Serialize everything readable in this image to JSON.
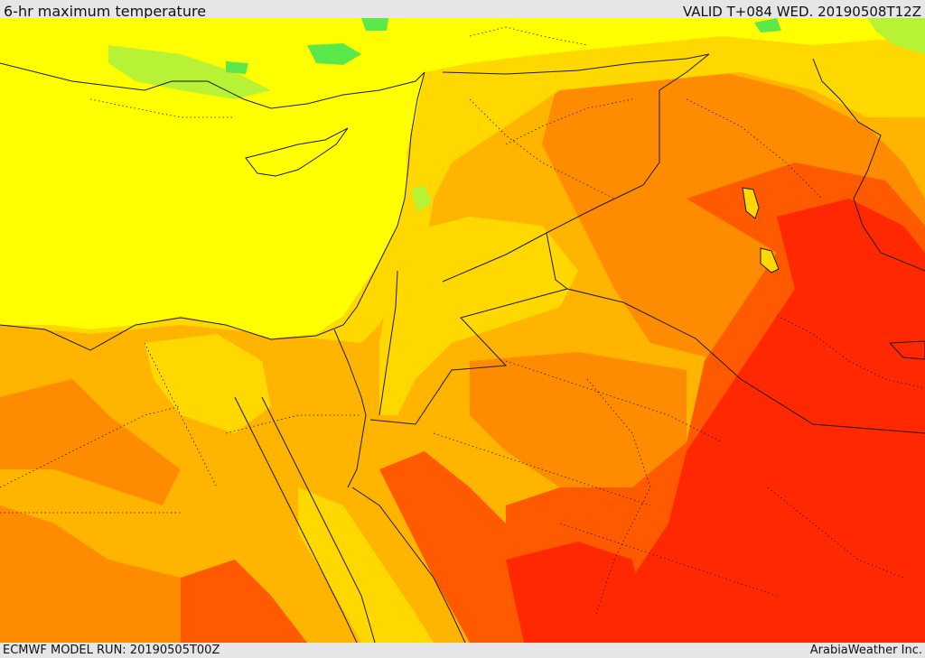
{
  "header": {
    "title": "6-hr maximum temperature",
    "valid": "VALID T+084 WED. 20190508T12Z"
  },
  "footer": {
    "model_run": "ECMWF MODEL RUN: 20190505T00Z",
    "credit": "ArabiaWeather Inc."
  },
  "map_colors": {
    "green": "#5be84a",
    "light_green": "#b8f234",
    "yellow": "#ffff00",
    "gold": "#ffd800",
    "amber": "#ffb400",
    "orange": "#ff8c00",
    "red_orange": "#ff5a00",
    "red": "#ff2800",
    "border": "#1a1a1a"
  }
}
